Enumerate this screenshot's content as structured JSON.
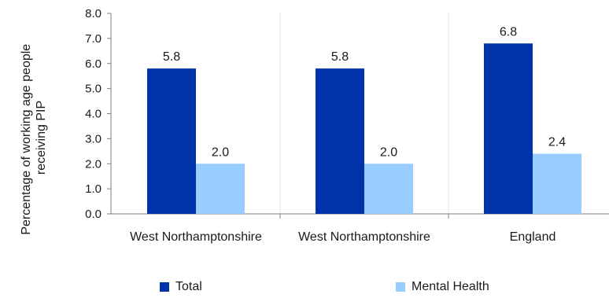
{
  "chart_data": {
    "type": "bar",
    "categories": [
      "West Northamptonshire",
      "West Northamptonshire",
      "England"
    ],
    "series": [
      {
        "name": "Total",
        "values": [
          5.8,
          5.8,
          6.8
        ],
        "labels": [
          "5.8",
          "5.8",
          "6.8"
        ],
        "color": "#0033aa"
      },
      {
        "name": "Mental Health",
        "values": [
          2.0,
          2.0,
          2.4
        ],
        "labels": [
          "2.0",
          "2.0",
          "2.4"
        ],
        "color": "#99ccff"
      }
    ],
    "ylabel_lines": [
      "Percentage of working age people",
      "receiving PIP"
    ],
    "ylim": [
      0,
      8
    ],
    "yticks": [
      "0.0",
      "1.0",
      "2.0",
      "3.0",
      "4.0",
      "5.0",
      "6.0",
      "7.0",
      "8.0"
    ],
    "grid": "vertical",
    "legend": "bottom"
  }
}
